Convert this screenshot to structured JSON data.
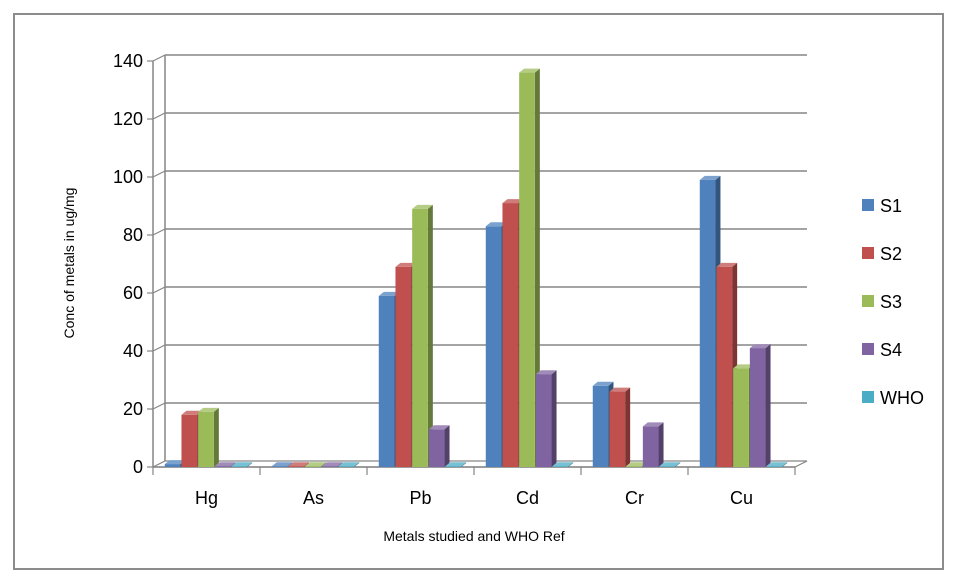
{
  "chart_data": {
    "type": "bar",
    "style": "3d-clustered",
    "categories": [
      "Hg",
      "As",
      "Pb",
      "Cd",
      "Cr",
      "Cu"
    ],
    "series": [
      {
        "name": "S1",
        "color": "#4f81bd",
        "values": [
          1,
          0,
          59,
          83,
          28,
          99
        ]
      },
      {
        "name": "S2",
        "color": "#c0504d",
        "values": [
          18,
          0,
          69,
          91,
          26,
          69
        ]
      },
      {
        "name": "S3",
        "color": "#9bbb59",
        "values": [
          19,
          0,
          89,
          136,
          0,
          34
        ]
      },
      {
        "name": "S4",
        "color": "#8064a2",
        "values": [
          0,
          0,
          13,
          32,
          14,
          41
        ]
      },
      {
        "name": "WHO",
        "color": "#4bacc6",
        "values": [
          0,
          0,
          0,
          0,
          0,
          0
        ]
      }
    ],
    "yticks": [
      0,
      20,
      40,
      60,
      80,
      100,
      120,
      140
    ],
    "ylim": [
      0,
      140
    ],
    "xlabel": "Metals studied  and WHO Ref",
    "ylabel": "Conc of metals in ug/mg",
    "title": "",
    "grid": true,
    "legend_position": "right"
  }
}
